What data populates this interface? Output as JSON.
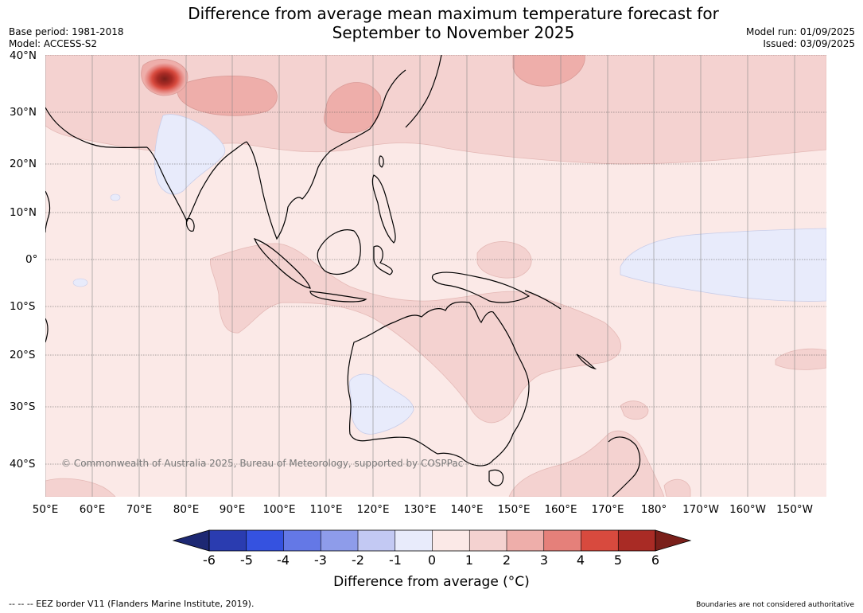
{
  "title_line1": "Difference from average mean maximum temperature forecast for",
  "title_line2": "September to November 2025",
  "base_period": "Base period: 1981-2018",
  "model": "Model: ACCESS-S2",
  "model_run": "Model run: 01/09/2025",
  "issued": "Issued: 03/09/2025",
  "latitudes": [
    "40°N",
    "30°N",
    "20°N",
    "10°N",
    "0°",
    "10°S",
    "20°S",
    "30°S",
    "40°S"
  ],
  "longitudes": [
    "50°E",
    "60°E",
    "70°E",
    "80°E",
    "90°E",
    "100°E",
    "110°E",
    "120°E",
    "130°E",
    "140°E",
    "150°E",
    "160°E",
    "170°E",
    "180°",
    "170°W",
    "160°W",
    "150°W"
  ],
  "copyright": "© Commonwealth of Australia 2025, Bureau of Meteorology, supported by COSPPac",
  "colorbar": {
    "ticks": [
      "-6",
      "-5",
      "-4",
      "-3",
      "-2",
      "-1",
      "0",
      "1",
      "2",
      "3",
      "4",
      "5",
      "6"
    ],
    "colors": [
      "#1d2873",
      "#2a3cb0",
      "#3552e0",
      "#6478e6",
      "#8e9cea",
      "#c3c9f3",
      "#e8ebfb",
      "#fbe9e7",
      "#f4d2d0",
      "#eeaeaa",
      "#e5807a",
      "#d84a3e",
      "#a92b25",
      "#7a1f1a"
    ],
    "title": "Difference from average (°C)"
  },
  "footer_left": "--  --  -- EEZ border V11 (Flanders Marine Institute, 2019).",
  "footer_right": "Boundaries are not considered authoritative"
}
